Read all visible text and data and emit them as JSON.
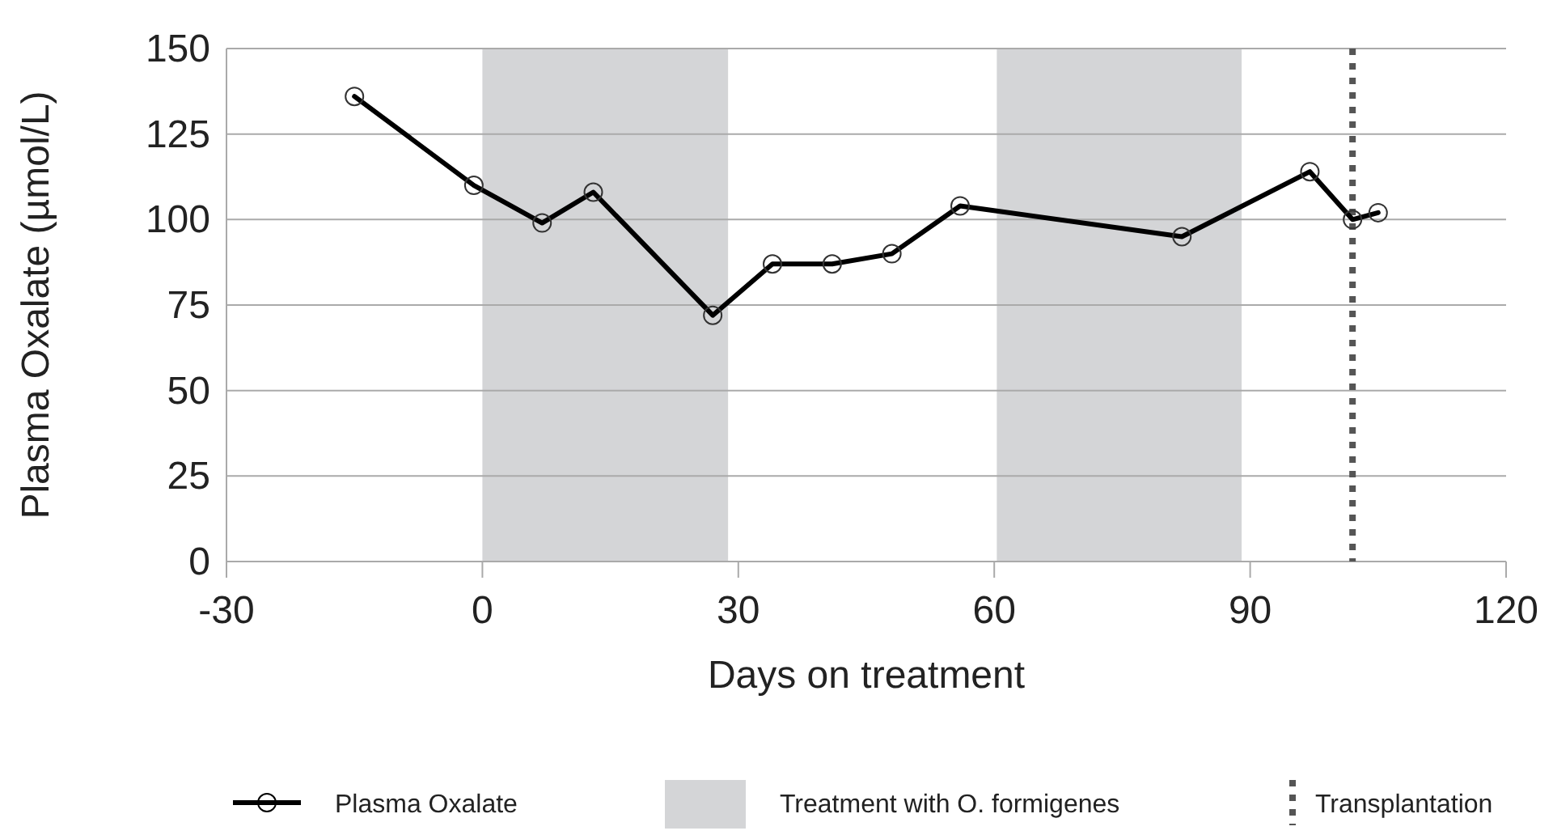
{
  "chart_data": {
    "type": "line",
    "xlabel": "Days on treatment",
    "ylabel": "Plasma Oxalate (µmol/L)",
    "x": [
      -15,
      -1,
      7,
      13,
      27,
      34,
      41,
      48,
      56,
      82,
      97,
      102,
      105
    ],
    "series": [
      {
        "name": "Plasma Oxalate",
        "color": "#000000",
        "values": [
          136,
          110,
          99,
          108,
          72,
          87,
          87,
          90,
          104,
          95,
          114,
          100,
          102
        ]
      }
    ],
    "xlim": [
      -30,
      120
    ],
    "xticks": [
      -30,
      0,
      30,
      60,
      90,
      120
    ],
    "ylim": [
      0,
      150
    ],
    "yticks": [
      0,
      25,
      50,
      75,
      100,
      125,
      150
    ],
    "grid": "y",
    "marker": "circle",
    "line_style": "solid",
    "legend": "bottom",
    "bands": [
      {
        "axis": "x",
        "from": 0,
        "to": 28.8,
        "label": "Treatment with O. formigenes",
        "color": "#d4d5d7"
      },
      {
        "axis": "x",
        "from": 60.3,
        "to": 89,
        "color": "#d4d5d7"
      }
    ],
    "ref_lines": [
      {
        "axis": "x",
        "value": 102,
        "label": "Transplantation",
        "color": "#555555",
        "line_style": "dotted"
      }
    ]
  }
}
